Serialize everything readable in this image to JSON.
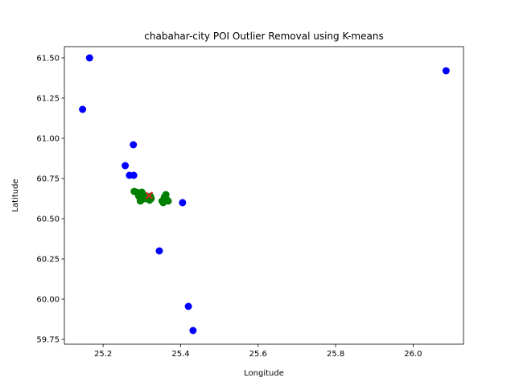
{
  "chart_data": {
    "type": "scatter",
    "title": "chabahar-city POI Outlier Removal using K-means",
    "xlabel": "Longitude",
    "ylabel": "Latitude",
    "xlim": [
      25.1,
      26.13
    ],
    "ylim": [
      59.72,
      61.57
    ],
    "xticks": [
      25.2,
      25.4,
      25.6,
      25.8,
      26.0
    ],
    "yticks": [
      59.75,
      60.0,
      60.25,
      60.5,
      60.75,
      61.0,
      61.25,
      61.5
    ],
    "xtick_labels": [
      "25.2",
      "25.4",
      "25.6",
      "25.8",
      "26.0"
    ],
    "ytick_labels": [
      "59.75",
      "60.00",
      "60.25",
      "60.50",
      "60.75",
      "61.00",
      "61.25",
      "61.50"
    ],
    "grid": false,
    "colors": {
      "outlier": "#0000ff",
      "inlier": "#008000",
      "centroid": "#d62728"
    },
    "series": [
      {
        "role": "outlier",
        "marker": "circle",
        "points": [
          [
            25.165,
            61.5
          ],
          [
            26.085,
            61.42
          ],
          [
            25.147,
            61.18
          ],
          [
            25.278,
            60.96
          ],
          [
            25.257,
            60.83
          ],
          [
            25.268,
            60.77
          ],
          [
            25.279,
            60.77
          ],
          [
            25.405,
            60.6
          ],
          [
            25.345,
            60.3
          ],
          [
            25.42,
            59.955
          ],
          [
            25.432,
            59.805
          ]
        ]
      },
      {
        "role": "inlier",
        "marker": "circle",
        "points": [
          [
            25.28,
            60.67
          ],
          [
            25.286,
            60.665
          ],
          [
            25.29,
            60.655
          ],
          [
            25.295,
            60.66
          ],
          [
            25.3,
            60.665
          ],
          [
            25.292,
            60.64
          ],
          [
            25.297,
            60.63
          ],
          [
            25.302,
            60.635
          ],
          [
            25.306,
            60.64
          ],
          [
            25.298,
            60.615
          ],
          [
            25.301,
            60.62
          ],
          [
            25.296,
            60.61
          ],
          [
            25.31,
            60.625
          ],
          [
            25.318,
            60.63
          ],
          [
            25.32,
            60.615
          ],
          [
            25.324,
            60.625
          ],
          [
            25.322,
            60.64
          ],
          [
            25.352,
            60.61
          ],
          [
            25.355,
            60.6
          ],
          [
            25.358,
            60.635
          ],
          [
            25.36,
            60.615
          ],
          [
            25.362,
            60.65
          ],
          [
            25.364,
            60.62
          ],
          [
            25.368,
            60.61
          ],
          [
            25.357,
            60.62
          ]
        ]
      },
      {
        "role": "centroid",
        "marker": "x",
        "points": [
          [
            25.319,
            60.645
          ]
        ]
      }
    ]
  }
}
